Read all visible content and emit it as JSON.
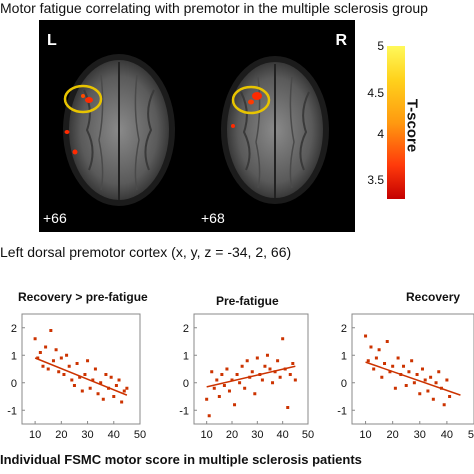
{
  "figure": {
    "heading": "Motor fatigue correlating with premotor in the multiple sclerosis group",
    "panels": [
      {
        "side_label": "L",
        "slice_label": "+66"
      },
      {
        "side_label": "R",
        "slice_label": "+68"
      }
    ],
    "colorbar": {
      "title": "T-score",
      "ticks": [
        "5",
        "4.5",
        "4",
        "3.5"
      ],
      "colors": [
        "#fff95a",
        "#ffd21c",
        "#ff9a10",
        "#ff3a0b",
        "#c40000"
      ]
    },
    "roi_text": "Left dorsal premotor cortex   (x,  y,  z = -34,  2, 66)",
    "footer": "Individual FSMC motor score in multiple sclerosis patients",
    "marker_color": "#e0a800",
    "point_color": "#cc3300"
  },
  "chart_data": [
    {
      "type": "scatter",
      "title": "Recovery > pre-fatigue",
      "xlim": [
        5,
        50
      ],
      "ylim": [
        -1.5,
        2.5
      ],
      "xticks": [
        "10",
        "20",
        "30",
        "40",
        "50"
      ],
      "yticks": [
        "2",
        "1",
        "0",
        "-1"
      ],
      "points": [
        [
          10,
          1.6
        ],
        [
          11,
          0.9
        ],
        [
          12,
          1.1
        ],
        [
          13,
          0.6
        ],
        [
          14,
          1.3
        ],
        [
          15,
          0.5
        ],
        [
          16,
          1.9
        ],
        [
          17,
          0.8
        ],
        [
          18,
          1.2
        ],
        [
          19,
          0.4
        ],
        [
          20,
          0.9
        ],
        [
          21,
          0.3
        ],
        [
          22,
          1.0
        ],
        [
          23,
          0.6
        ],
        [
          24,
          0.1
        ],
        [
          25,
          -0.1
        ],
        [
          26,
          0.7
        ],
        [
          27,
          0.2
        ],
        [
          28,
          -0.3
        ],
        [
          29,
          0.3
        ],
        [
          30,
          0.8
        ],
        [
          31,
          -0.2
        ],
        [
          32,
          0.1
        ],
        [
          33,
          0.5
        ],
        [
          34,
          -0.4
        ],
        [
          35,
          0.0
        ],
        [
          36,
          -0.6
        ],
        [
          37,
          0.3
        ],
        [
          38,
          -0.2
        ],
        [
          39,
          0.2
        ],
        [
          40,
          -0.5
        ],
        [
          41,
          -0.1
        ],
        [
          42,
          0.1
        ],
        [
          43,
          -0.7
        ],
        [
          44,
          -0.3
        ],
        [
          45,
          -0.2
        ]
      ],
      "fit": [
        [
          10,
          0.9
        ],
        [
          45,
          -0.45
        ]
      ]
    },
    {
      "type": "scatter",
      "title": "Pre-fatigue",
      "xlim": [
        5,
        50
      ],
      "ylim": [
        -1.5,
        2.5
      ],
      "xticks": [
        "10",
        "20",
        "30",
        "40",
        "50"
      ],
      "yticks": [
        "2",
        "1",
        "0",
        "-1"
      ],
      "points": [
        [
          10,
          -0.6
        ],
        [
          11,
          -1.2
        ],
        [
          12,
          0.4
        ],
        [
          13,
          -0.2
        ],
        [
          14,
          0.1
        ],
        [
          15,
          -0.5
        ],
        [
          16,
          0.3
        ],
        [
          17,
          -0.1
        ],
        [
          18,
          0.5
        ],
        [
          19,
          -0.3
        ],
        [
          20,
          0.1
        ],
        [
          21,
          -0.8
        ],
        [
          22,
          0.3
        ],
        [
          23,
          0.0
        ],
        [
          24,
          0.6
        ],
        [
          25,
          -0.2
        ],
        [
          26,
          0.8
        ],
        [
          27,
          0.2
        ],
        [
          28,
          0.4
        ],
        [
          29,
          -0.4
        ],
        [
          30,
          0.9
        ],
        [
          31,
          0.3
        ],
        [
          32,
          0.1
        ],
        [
          33,
          0.6
        ],
        [
          34,
          1.0
        ],
        [
          35,
          0.5
        ],
        [
          36,
          0.0
        ],
        [
          37,
          0.4
        ],
        [
          38,
          0.8
        ],
        [
          39,
          0.2
        ],
        [
          40,
          1.6
        ],
        [
          41,
          0.5
        ],
        [
          42,
          -0.9
        ],
        [
          43,
          0.3
        ],
        [
          44,
          0.7
        ],
        [
          45,
          0.1
        ]
      ],
      "fit": [
        [
          10,
          -0.15
        ],
        [
          45,
          0.6
        ]
      ]
    },
    {
      "type": "scatter",
      "title": "Recovery",
      "xlim": [
        5,
        50
      ],
      "ylim": [
        -1.5,
        2.5
      ],
      "xticks": [
        "10",
        "20",
        "30",
        "40",
        "50"
      ],
      "yticks": [
        "2",
        "1",
        "0",
        "-1"
      ],
      "points": [
        [
          10,
          1.7
        ],
        [
          11,
          0.8
        ],
        [
          12,
          1.3
        ],
        [
          13,
          0.5
        ],
        [
          14,
          0.9
        ],
        [
          15,
          1.2
        ],
        [
          16,
          0.2
        ],
        [
          17,
          0.7
        ],
        [
          18,
          1.5
        ],
        [
          19,
          0.4
        ],
        [
          20,
          0.6
        ],
        [
          21,
          -0.2
        ],
        [
          22,
          0.9
        ],
        [
          23,
          0.3
        ],
        [
          24,
          0.6
        ],
        [
          25,
          -0.1
        ],
        [
          26,
          0.4
        ],
        [
          27,
          0.8
        ],
        [
          28,
          0.0
        ],
        [
          29,
          0.3
        ],
        [
          30,
          -0.4
        ],
        [
          31,
          0.5
        ],
        [
          32,
          0.1
        ],
        [
          33,
          -0.3
        ],
        [
          34,
          0.2
        ],
        [
          35,
          -0.6
        ],
        [
          36,
          0.0
        ],
        [
          37,
          0.4
        ],
        [
          38,
          -0.2
        ],
        [
          39,
          -0.8
        ],
        [
          40,
          0.1
        ],
        [
          41,
          -0.5
        ]
      ],
      "fit": [
        [
          10,
          0.75
        ],
        [
          45,
          -0.45
        ]
      ]
    }
  ]
}
